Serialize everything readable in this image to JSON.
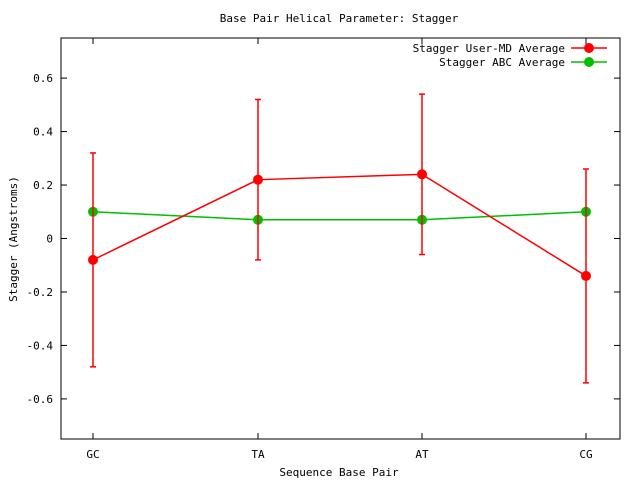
{
  "chart_data": {
    "type": "line",
    "title": "Base Pair Helical Parameter: Stagger",
    "xlabel": "Sequence Base Pair",
    "ylabel": "Stagger (Angstroms)",
    "categories": [
      "GC",
      "TA",
      "AT",
      "CG"
    ],
    "ylim": [
      -0.75,
      0.75
    ],
    "yticks": [
      -0.6,
      -0.4,
      -0.2,
      0,
      0.2,
      0.4,
      0.6
    ],
    "ytick_labels": [
      "-0.6",
      "-0.4",
      "-0.2",
      "0",
      "0.2",
      "0.4",
      "0.6"
    ],
    "legend_position": "top-right",
    "grid": false,
    "series": [
      {
        "name": "Stagger User-MD Average",
        "color": "#ff0000",
        "values": [
          -0.08,
          0.22,
          0.24,
          -0.14
        ],
        "error_low": [
          -0.48,
          -0.08,
          -0.06,
          -0.54
        ],
        "error_high": [
          0.32,
          0.52,
          0.54,
          0.26
        ]
      },
      {
        "name": "Stagger ABC Average",
        "color": "#00c000",
        "values": [
          0.1,
          0.07,
          0.07,
          0.1
        ]
      }
    ]
  }
}
